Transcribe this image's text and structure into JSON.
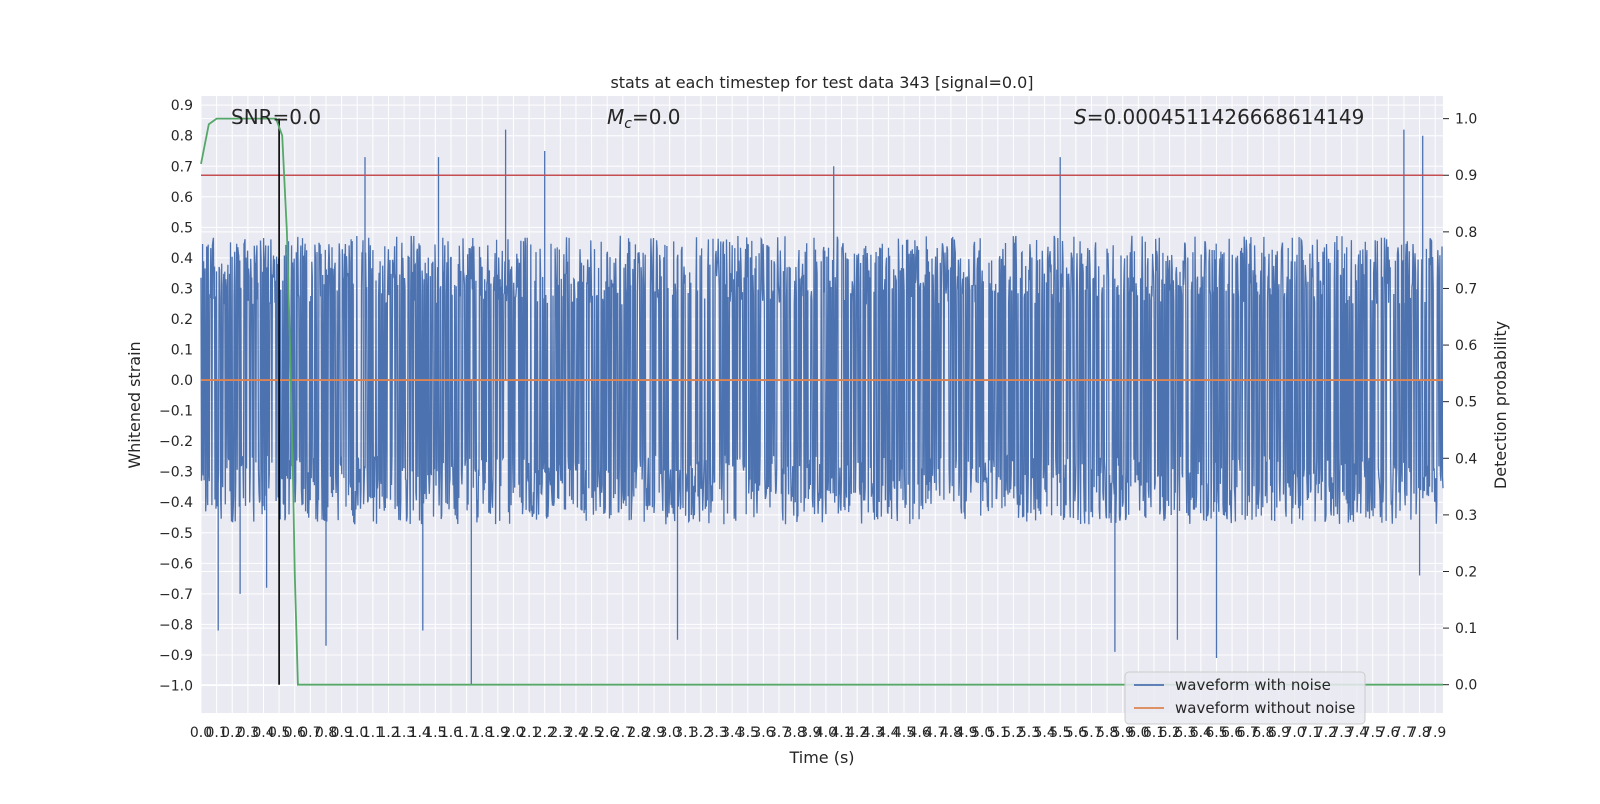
{
  "chart_data": {
    "type": "line",
    "title": "stats at each timestep for test data 343 [signal=0.0]",
    "xlabel": "Time (s)",
    "ylabel": "Whitened strain",
    "ylabel_right": "Detection probability",
    "xlim": [
      0.0,
      7.95
    ],
    "ylim": [
      -1.09,
      0.93
    ],
    "ylim_right": [
      -0.05,
      1.04
    ],
    "x_ticks": [
      "0.0",
      "0.1",
      "0.2",
      "0.3",
      "0.4",
      "0.5",
      "0.6",
      "0.7",
      "0.8",
      "0.9",
      "1.0",
      "1.1",
      "1.2",
      "1.3",
      "1.4",
      "1.5",
      "1.6",
      "1.7",
      "1.8",
      "1.9",
      "2.0",
      "2.1",
      "2.2",
      "2.3",
      "2.4",
      "2.5",
      "2.6",
      "2.7",
      "2.8",
      "2.9",
      "3.0",
      "3.1",
      "3.2",
      "3.3",
      "3.4",
      "3.5",
      "3.6",
      "3.7",
      "3.8",
      "3.9",
      "4.0",
      "4.1",
      "4.2",
      "4.3",
      "4.4",
      "4.5",
      "4.6",
      "4.7",
      "4.8",
      "4.9",
      "5.0",
      "5.1",
      "5.2",
      "5.3",
      "5.4",
      "5.5",
      "5.6",
      "5.7",
      "5.8",
      "5.9",
      "6.0",
      "6.1",
      "6.2",
      "6.3",
      "6.4",
      "6.5",
      "6.6",
      "6.7",
      "6.8",
      "6.9",
      "7.0",
      "7.1",
      "7.2",
      "7.3",
      "7.4",
      "7.5",
      "7.6",
      "7.7",
      "7.8",
      "7.9"
    ],
    "y_ticks_left": [
      "0.9",
      "0.8",
      "0.7",
      "0.6",
      "0.5",
      "0.4",
      "0.3",
      "0.2",
      "0.1",
      "0.0",
      "−0.1",
      "−0.2",
      "−0.3",
      "−0.4",
      "−0.5",
      "−0.6",
      "−0.7",
      "−0.8",
      "−0.9",
      "−1.0"
    ],
    "y_ticks_right": [
      "1.0",
      "0.9",
      "0.8",
      "0.7",
      "0.6",
      "0.5",
      "0.4",
      "0.3",
      "0.2",
      "0.1",
      "0.0"
    ],
    "annotations": {
      "snr": "SNR=0.0",
      "mc_symbol": "M",
      "mc_sub": "c",
      "mc_value": "=0.0",
      "s_symbol": "S",
      "s_value": "=0.0004511426668614149"
    },
    "threshold_right": 0.9,
    "vline_x": 0.5,
    "noise_series": {
      "name": "waveform with noise",
      "color": "#4c72b0",
      "typical_envelope": [
        -0.45,
        0.45
      ],
      "max": 0.82,
      "min": -1.0,
      "spikes": [
        {
          "x": 0.11,
          "y": -0.82
        },
        {
          "x": 0.25,
          "y": -0.7
        },
        {
          "x": 0.42,
          "y": -0.68
        },
        {
          "x": 0.8,
          "y": -0.87
        },
        {
          "x": 1.05,
          "y": 0.73
        },
        {
          "x": 1.42,
          "y": -0.82
        },
        {
          "x": 1.52,
          "y": 0.73
        },
        {
          "x": 1.73,
          "y": -1.0
        },
        {
          "x": 1.95,
          "y": 0.82
        },
        {
          "x": 2.2,
          "y": 0.75
        },
        {
          "x": 3.05,
          "y": -0.85
        },
        {
          "x": 4.05,
          "y": 0.7
        },
        {
          "x": 5.5,
          "y": 0.73
        },
        {
          "x": 5.85,
          "y": -0.89
        },
        {
          "x": 6.25,
          "y": -0.85
        },
        {
          "x": 6.5,
          "y": -0.91
        },
        {
          "x": 7.7,
          "y": 0.82
        },
        {
          "x": 7.82,
          "y": 0.8
        },
        {
          "x": 7.8,
          "y": -0.64
        }
      ]
    },
    "clean_series": {
      "name": "waveform without noise",
      "color": "#dd8452",
      "value": 0.0
    },
    "probability_series": {
      "color": "#55a868",
      "x": [
        0.0,
        0.05,
        0.1,
        0.2,
        0.3,
        0.4,
        0.48,
        0.52,
        0.55,
        0.57,
        0.59,
        0.6,
        0.62,
        7.95
      ],
      "y": [
        0.92,
        0.99,
        1.0,
        1.0,
        1.0,
        1.0,
        1.0,
        0.97,
        0.8,
        0.6,
        0.35,
        0.2,
        0.0,
        0.0
      ]
    },
    "threshold_color": "#c44e52",
    "vline_color": "#000000",
    "grid": true,
    "legend_position": "lower-right"
  }
}
